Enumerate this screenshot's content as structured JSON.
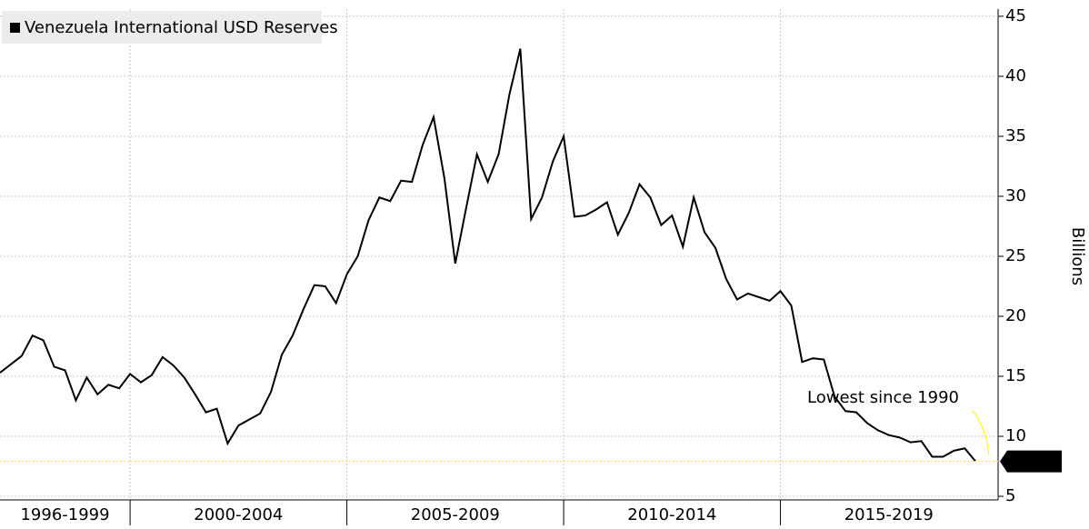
{
  "chart_data": {
    "type": "line",
    "series": [
      {
        "name": "Venezuela International USD Reserves",
        "color": "#000000",
        "values": [
          15.3,
          16.0,
          16.7,
          18.4,
          18.0,
          15.8,
          15.5,
          13.0,
          14.9,
          13.5,
          14.3,
          14.0,
          15.2,
          14.5,
          15.1,
          16.6,
          15.9,
          14.9,
          13.5,
          12.0,
          12.3,
          9.4,
          10.9,
          11.4,
          11.9,
          13.7,
          16.8,
          18.4,
          20.6,
          22.6,
          22.5,
          21.1,
          23.5,
          25.0,
          28.0,
          29.9,
          29.6,
          31.3,
          31.2,
          34.3,
          36.6,
          31.5,
          24.4,
          29.0,
          33.5,
          31.2,
          33.5,
          38.5,
          42.3,
          28.1,
          29.9,
          32.9,
          35.0,
          28.3,
          28.4,
          28.9,
          29.5,
          26.8,
          28.6,
          31.0,
          29.9,
          27.6,
          28.4,
          25.8,
          29.9,
          27.0,
          25.7,
          23.1,
          21.4,
          21.9,
          21.6,
          21.3,
          22.1,
          20.9,
          16.2,
          16.5,
          16.4,
          13.3,
          12.1,
          12.0,
          11.1,
          10.5,
          10.1,
          9.9,
          9.5,
          9.6,
          8.3,
          8.3,
          8.8,
          9.0,
          7.909
        ]
      }
    ],
    "x": [
      1997,
      1997.25,
      1997.5,
      1997.75,
      1998,
      1998.25,
      1998.5,
      1998.75,
      1999,
      1999.25,
      1999.5,
      1999.75,
      2000,
      2000.25,
      2000.5,
      2000.75,
      2001,
      2001.25,
      2001.5,
      2001.75,
      2002,
      2002.25,
      2002.5,
      2002.75,
      2003,
      2003.25,
      2003.5,
      2003.75,
      2004,
      2004.25,
      2004.5,
      2004.75,
      2005,
      2005.25,
      2005.5,
      2005.75,
      2006,
      2006.25,
      2006.5,
      2006.75,
      2007,
      2007.25,
      2007.5,
      2007.75,
      2008,
      2008.25,
      2008.5,
      2008.75,
      2009,
      2009.25,
      2009.5,
      2009.75,
      2010,
      2010.25,
      2010.5,
      2010.75,
      2011,
      2011.25,
      2011.5,
      2011.75,
      2012,
      2012.25,
      2012.5,
      2012.75,
      2013,
      2013.25,
      2013.5,
      2013.75,
      2014,
      2014.25,
      2014.5,
      2014.75,
      2015,
      2015.25,
      2015.5,
      2015.75,
      2016,
      2016.25,
      2016.5,
      2016.75,
      2017,
      2017.25,
      2017.5,
      2017.75,
      2018,
      2018.25,
      2018.5,
      2018.75,
      2019,
      2019.25,
      2019.5
    ],
    "xlim": [
      1997,
      2020.02
    ],
    "xticks": [
      {
        "value": 1998.5,
        "label": "1996-1999"
      },
      {
        "value": 2002.5,
        "label": "2000-2004"
      },
      {
        "value": 2007.5,
        "label": "2005-2009"
      },
      {
        "value": 2012.5,
        "label": "2010-2014"
      },
      {
        "value": 2017.5,
        "label": "2015-2019"
      }
    ],
    "xgrid": [
      2000,
      2005,
      2010,
      2015
    ],
    "ylim": [
      4.7,
      45.6
    ],
    "yticks": [
      5,
      10,
      15,
      20,
      25,
      30,
      35,
      40,
      45
    ],
    "ylabel": "Billions",
    "annotation": "Lowest since 1990",
    "annotation_color": "#ffff00",
    "grid": true
  }
}
